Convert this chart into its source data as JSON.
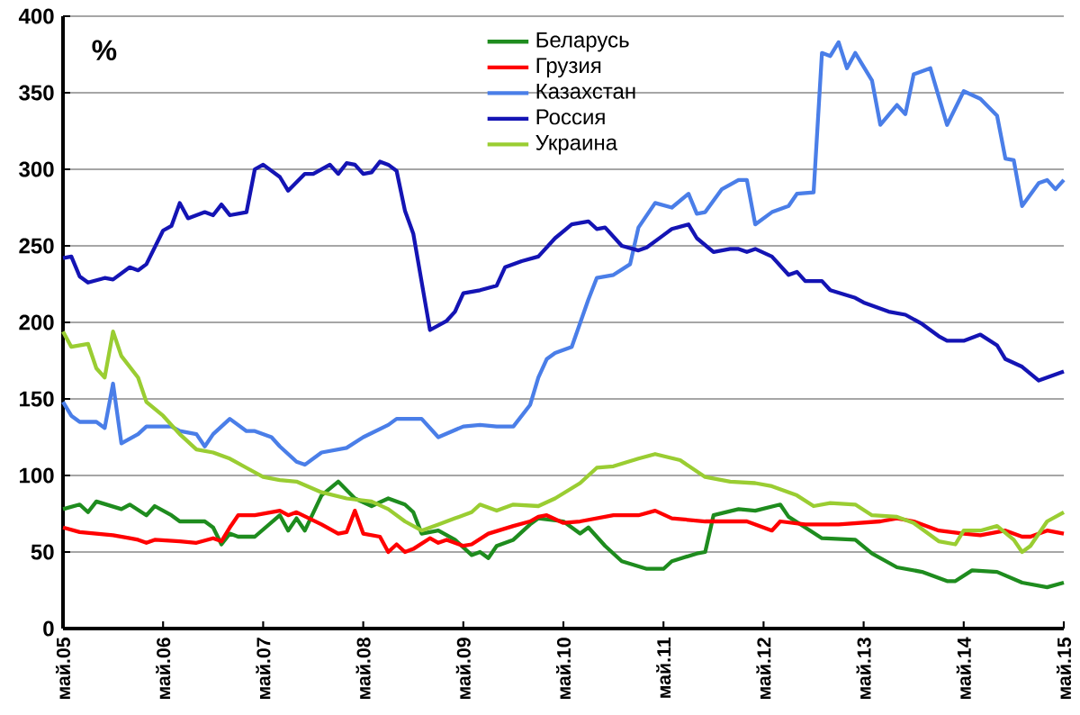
{
  "chart_data": {
    "type": "line",
    "ylabel": "%",
    "grid": "y",
    "legend": "top",
    "marker": "none",
    "line_style": "solid",
    "xlim": [
      "2005-05",
      "2015-05"
    ],
    "xticks": [
      {
        "value": "2005-05",
        "label": "май.05"
      },
      {
        "value": "2006-05",
        "label": "май.06"
      },
      {
        "value": "2007-05",
        "label": "май.07"
      },
      {
        "value": "2008-05",
        "label": "май.08"
      },
      {
        "value": "2009-05",
        "label": "май.09"
      },
      {
        "value": "2010-05",
        "label": "май.10"
      },
      {
        "value": "2011-05",
        "label": "май.11"
      },
      {
        "value": "2012-05",
        "label": "май.12"
      },
      {
        "value": "2013-05",
        "label": "май.13"
      },
      {
        "value": "2014-05",
        "label": "май.14"
      },
      {
        "value": "2015-05",
        "label": "май.15"
      }
    ],
    "ylim": [
      0,
      400
    ],
    "yticks": [
      0,
      50,
      100,
      150,
      200,
      250,
      300,
      350,
      400
    ],
    "series": [
      {
        "name": "Беларусь",
        "color": "#1e8c1e",
        "x": [
          "2005-05",
          "2005-07",
          "2005-08",
          "2005-09",
          "2005-12",
          "2006-01",
          "2006-03",
          "2006-04",
          "2006-06",
          "2006-07",
          "2006-10",
          "2006-11",
          "2006-12",
          "2007-01",
          "2007-02",
          "2007-04",
          "2007-07",
          "2007-08",
          "2007-09",
          "2007-10",
          "2007-12",
          "2008-02",
          "2008-04",
          "2008-06",
          "2008-08",
          "2008-10",
          "2008-11",
          "2008-12",
          "2009-02",
          "2009-04",
          "2009-06",
          "2009-07",
          "2009-08",
          "2009-09",
          "2009-11",
          "2010-01",
          "2010-02",
          "2010-05",
          "2010-07",
          "2010-08",
          "2010-10",
          "2010-12",
          "2011-03",
          "2011-05",
          "2011-06",
          "2011-09",
          "2011-10",
          "2011-11",
          "2012-02",
          "2012-04",
          "2012-07",
          "2012-08",
          "2012-10",
          "2012-12",
          "2013-04",
          "2013-06",
          "2013-09",
          "2013-12",
          "2014-03",
          "2014-04",
          "2014-06",
          "2014-09",
          "2014-12",
          "2015-03",
          "2015-05"
        ],
        "values": [
          78,
          81,
          76,
          83,
          78,
          81,
          74,
          80,
          74,
          70,
          70,
          66,
          55,
          62,
          60,
          60,
          74,
          64,
          72,
          64,
          87,
          96,
          85,
          80,
          85,
          81,
          76,
          62,
          64,
          58,
          48,
          50,
          46,
          54,
          58,
          68,
          72,
          70,
          62,
          66,
          54,
          44,
          39,
          39,
          44,
          49,
          50,
          74,
          78,
          77,
          81,
          73,
          66,
          59,
          58,
          49,
          40,
          37,
          31,
          31,
          38,
          37,
          30,
          27,
          30
        ]
      },
      {
        "name": "Грузия",
        "color": "#ff0000",
        "x": [
          "2005-05",
          "2005-07",
          "2005-09",
          "2005-11",
          "2006-01",
          "2006-02",
          "2006-03",
          "2006-04",
          "2006-07",
          "2006-09",
          "2006-11",
          "2006-12",
          "2007-01",
          "2007-02",
          "2007-04",
          "2007-07",
          "2007-08",
          "2007-09",
          "2007-12",
          "2008-02",
          "2008-03",
          "2008-04",
          "2008-05",
          "2008-07",
          "2008-08",
          "2008-09",
          "2008-10",
          "2008-11",
          "2009-01",
          "2009-02",
          "2009-03",
          "2009-05",
          "2009-06",
          "2009-08",
          "2009-11",
          "2010-01",
          "2010-02",
          "2010-03",
          "2010-05",
          "2010-07",
          "2010-11",
          "2011-02",
          "2011-04",
          "2011-06",
          "2011-10",
          "2012-03",
          "2012-06",
          "2012-07",
          "2012-10",
          "2013-02",
          "2013-07",
          "2013-09",
          "2013-11",
          "2014-02",
          "2014-05",
          "2014-07",
          "2014-10",
          "2014-12",
          "2015-01",
          "2015-03",
          "2015-05"
        ],
        "values": [
          66,
          63,
          62,
          61,
          59,
          58,
          56,
          58,
          57,
          56,
          59,
          57,
          66,
          74,
          74,
          77,
          74,
          76,
          68,
          62,
          63,
          77,
          62,
          60,
          50,
          55,
          50,
          52,
          59,
          56,
          58,
          54,
          55,
          62,
          67,
          70,
          73,
          74,
          69,
          70,
          74,
          74,
          77,
          72,
          70,
          70,
          64,
          70,
          68,
          68,
          70,
          72,
          70,
          64,
          62,
          61,
          64,
          60,
          60,
          64,
          62
        ]
      },
      {
        "name": "Казахстан",
        "color": "#4a7ee8",
        "x": [
          "2005-05",
          "2005-06",
          "2005-07",
          "2005-09",
          "2005-10",
          "2005-11",
          "2005-12",
          "2006-02",
          "2006-03",
          "2006-06",
          "2006-07",
          "2006-09",
          "2006-10",
          "2006-11",
          "2007-01",
          "2007-03",
          "2007-04",
          "2007-06",
          "2007-07",
          "2007-09",
          "2007-10",
          "2007-12",
          "2008-03",
          "2008-05",
          "2008-08",
          "2008-09",
          "2008-12",
          "2009-02",
          "2009-05",
          "2009-07",
          "2009-09",
          "2009-11",
          "2010-01",
          "2010-02",
          "2010-03",
          "2010-04",
          "2010-06",
          "2010-08",
          "2010-09",
          "2010-11",
          "2011-01",
          "2011-02",
          "2011-04",
          "2011-06",
          "2011-08",
          "2011-09",
          "2011-10",
          "2011-12",
          "2012-02",
          "2012-03",
          "2012-04",
          "2012-06",
          "2012-08",
          "2012-09",
          "2012-11",
          "2012-12",
          "2013-01",
          "2013-02",
          "2013-03",
          "2013-04",
          "2013-06",
          "2013-07",
          "2013-09",
          "2013-10",
          "2013-11",
          "2014-01",
          "2014-03",
          "2014-05",
          "2014-07",
          "2014-09",
          "2014-10",
          "2014-11",
          "2014-12",
          "2015-02",
          "2015-03",
          "2015-04",
          "2015-05"
        ],
        "values": [
          148,
          139,
          135,
          135,
          131,
          160,
          121,
          127,
          132,
          132,
          129,
          127,
          119,
          127,
          137,
          129,
          129,
          125,
          119,
          109,
          107,
          115,
          118,
          125,
          133,
          137,
          137,
          125,
          132,
          133,
          132,
          132,
          146,
          164,
          176,
          180,
          184,
          215,
          229,
          231,
          238,
          262,
          278,
          275,
          284,
          271,
          272,
          287,
          293,
          293,
          264,
          272,
          276,
          284,
          285,
          376,
          374,
          383,
          366,
          376,
          358,
          329,
          342,
          336,
          362,
          366,
          329,
          351,
          346,
          335,
          307,
          306,
          276,
          291,
          293,
          287,
          293
        ]
      },
      {
        "name": "Россия",
        "color": "#1414b4",
        "x": [
          "2005-05",
          "2005-06",
          "2005-07",
          "2005-08",
          "2005-10",
          "2005-11",
          "2006-01",
          "2006-02",
          "2006-03",
          "2006-05",
          "2006-06",
          "2006-07",
          "2006-08",
          "2006-10",
          "2006-11",
          "2006-12",
          "2007-01",
          "2007-03",
          "2007-04",
          "2007-05",
          "2007-07",
          "2007-08",
          "2007-10",
          "2007-11",
          "2008-01",
          "2008-02",
          "2008-03",
          "2008-04",
          "2008-05",
          "2008-06",
          "2008-07",
          "2008-08",
          "2008-09",
          "2008-10",
          "2008-11",
          "2009-01",
          "2009-03",
          "2009-04",
          "2009-05",
          "2009-07",
          "2009-09",
          "2009-10",
          "2009-12",
          "2010-02",
          "2010-04",
          "2010-06",
          "2010-08",
          "2010-09",
          "2010-10",
          "2010-12",
          "2011-02",
          "2011-03",
          "2011-05",
          "2011-06",
          "2011-08",
          "2011-09",
          "2011-11",
          "2012-01",
          "2012-02",
          "2012-03",
          "2012-04",
          "2012-06",
          "2012-08",
          "2012-09",
          "2012-10",
          "2012-12",
          "2013-01",
          "2013-04",
          "2013-05",
          "2013-08",
          "2013-10",
          "2013-12",
          "2014-02",
          "2014-03",
          "2014-05",
          "2014-07",
          "2014-09",
          "2014-10",
          "2014-12",
          "2015-02",
          "2015-05"
        ],
        "values": [
          242,
          243,
          230,
          226,
          229,
          228,
          236,
          234,
          238,
          260,
          263,
          278,
          268,
          272,
          270,
          277,
          270,
          272,
          300,
          303,
          295,
          286,
          297,
          297,
          303,
          297,
          304,
          303,
          297,
          298,
          305,
          303,
          299,
          273,
          258,
          195,
          201,
          207,
          219,
          221,
          224,
          236,
          240,
          243,
          255,
          264,
          266,
          261,
          262,
          250,
          247,
          249,
          257,
          261,
          264,
          255,
          246,
          248,
          248,
          246,
          248,
          243,
          231,
          233,
          227,
          227,
          221,
          216,
          213,
          207,
          205,
          199,
          191,
          188,
          188,
          192,
          185,
          176,
          171,
          162,
          168
        ]
      },
      {
        "name": "Украина",
        "color": "#9acd32",
        "x": [
          "2005-05",
          "2005-06",
          "2005-08",
          "2005-09",
          "2005-10",
          "2005-11",
          "2005-12",
          "2006-02",
          "2006-03",
          "2006-05",
          "2006-07",
          "2006-09",
          "2006-11",
          "2007-01",
          "2007-03",
          "2007-05",
          "2007-07",
          "2007-09",
          "2007-12",
          "2008-03",
          "2008-06",
          "2008-08",
          "2008-10",
          "2008-12",
          "2009-02",
          "2009-04",
          "2009-06",
          "2009-07",
          "2009-09",
          "2009-11",
          "2010-02",
          "2010-04",
          "2010-07",
          "2010-09",
          "2010-11",
          "2011-02",
          "2011-04",
          "2011-07",
          "2011-10",
          "2012-01",
          "2012-04",
          "2012-06",
          "2012-09",
          "2012-11",
          "2013-01",
          "2013-04",
          "2013-06",
          "2013-09",
          "2013-11",
          "2014-02",
          "2014-04",
          "2014-05",
          "2014-07",
          "2014-09",
          "2014-11",
          "2014-12",
          "2015-01",
          "2015-03",
          "2015-05"
        ],
        "values": [
          194,
          184,
          186,
          170,
          164,
          194,
          178,
          164,
          148,
          139,
          127,
          117,
          115,
          111,
          105,
          99,
          97,
          96,
          89,
          85,
          83,
          78,
          70,
          64,
          68,
          72,
          76,
          81,
          77,
          81,
          80,
          85,
          95,
          105,
          106,
          111,
          114,
          110,
          99,
          96,
          95,
          93,
          87,
          80,
          82,
          81,
          74,
          73,
          69,
          57,
          55,
          64,
          64,
          67,
          58,
          50,
          54,
          70,
          76
        ]
      }
    ]
  }
}
